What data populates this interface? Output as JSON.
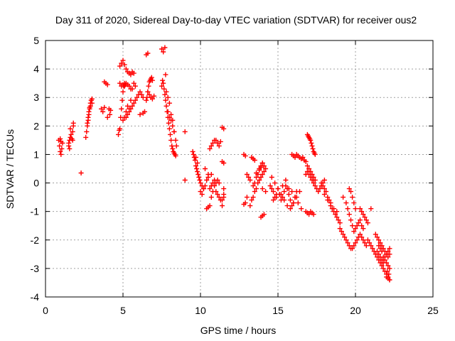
{
  "chart_data": {
    "type": "scatter",
    "title": "Day 311 of 2020, Sidereal Day-to-day VTEC variation (SDTVAR) for receiver ous2",
    "xlabel": "GPS time / hours",
    "ylabel": "SDTVAR / TECUs",
    "xlim": [
      0,
      25
    ],
    "ylim": [
      -4,
      5
    ],
    "xticks": [
      0,
      5,
      10,
      15,
      20,
      25
    ],
    "yticks": [
      -4,
      -3,
      -2,
      -1,
      0,
      1,
      2,
      3,
      4,
      5
    ],
    "xtick_labels": [
      "0",
      "5",
      "10",
      "15",
      "20",
      "25"
    ],
    "ytick_labels": [
      "-4",
      "-3",
      "-2",
      "-1",
      "0",
      "1",
      "2",
      "3",
      "4",
      "5"
    ],
    "grid": true,
    "marker": "+",
    "color": "#ff0000",
    "series": [
      {
        "name": "ous2",
        "x": [
          0.85,
          0.9,
          0.95,
          1.0,
          1.05,
          1.0,
          0.95,
          1.1,
          1.5,
          1.55,
          1.6,
          1.65,
          1.7,
          1.75,
          1.6,
          1.5,
          1.55,
          1.75,
          1.8,
          1.8,
          2.3,
          2.6,
          2.65,
          2.7,
          2.75,
          2.8,
          2.85,
          2.9,
          2.95,
          3.0,
          2.7,
          2.75,
          2.8,
          2.85,
          2.9,
          2.95,
          3.0,
          3.6,
          3.7,
          3.8,
          3.9,
          4.0,
          4.1,
          4.2,
          3.8,
          4.0,
          4.15,
          4.7,
          4.75,
          4.8,
          4.85,
          4.9,
          4.95,
          5.0,
          5.05,
          5.1,
          5.15,
          4.8,
          4.9,
          5.0,
          5.1,
          5.2,
          5.3,
          5.4,
          5.5,
          5.6,
          5.7,
          5.0,
          5.1,
          5.2,
          5.3,
          5.4,
          5.5,
          5.6,
          5.7,
          5.8,
          4.8,
          4.9,
          5.0,
          5.1,
          5.2,
          5.3,
          5.4,
          5.5,
          5.2,
          5.3,
          5.4,
          5.5,
          5.6,
          5.7,
          5.8,
          5.9,
          6.0,
          6.1,
          6.2,
          6.3,
          6.1,
          6.3,
          6.4,
          6.5,
          6.55,
          6.6,
          6.65,
          6.7,
          6.75,
          6.8,
          6.85,
          6.9,
          6.5,
          6.6,
          6.7,
          6.8,
          6.9,
          6.6,
          7.0,
          7.5,
          7.55,
          7.6,
          7.65,
          7.7,
          7.75,
          7.8,
          7.85,
          7.9,
          7.95,
          8.0,
          8.05,
          8.1,
          8.15,
          8.2,
          8.25,
          8.3,
          8.35,
          8.4,
          7.9,
          8.0,
          8.1,
          8.2,
          8.3,
          7.8,
          7.9,
          8.0,
          8.1,
          8.2,
          8.3,
          8.4,
          8.45,
          7.5,
          7.6,
          7.7,
          7.75,
          9.0,
          9.0,
          9.5,
          9.55,
          9.6,
          9.65,
          9.7,
          9.75,
          9.8,
          9.85,
          9.9,
          9.95,
          10.0,
          10.1,
          10.2,
          9.7,
          9.8,
          10.0,
          10.1,
          10.2,
          10.3,
          10.4,
          10.5,
          10.6,
          10.7,
          10.8,
          10.9,
          11.0,
          11.1,
          11.2,
          11.3,
          11.4,
          11.5,
          10.4,
          10.5,
          10.6,
          10.7,
          10.8,
          10.9,
          11.0,
          11.1,
          11.2,
          10.6,
          10.7,
          10.8,
          10.9,
          11.0,
          11.1,
          11.2,
          11.3,
          11.4,
          10.3,
          10.5,
          10.7,
          11.4,
          11.5,
          11.5,
          11.4,
          11.5,
          11.5,
          12.8,
          12.9,
          13.0,
          13.1,
          13.2,
          13.0,
          12.9,
          12.8,
          13.2,
          13.3,
          13.4,
          13.5,
          13.6,
          13.7,
          13.8,
          13.9,
          14.0,
          14.1,
          13.4,
          13.5,
          13.6,
          13.7,
          13.8,
          13.9,
          14.0,
          14.1,
          14.2,
          13.3,
          13.4,
          13.5,
          13.6,
          13.8,
          13.9,
          14.0,
          13.9,
          14.0,
          14.1,
          14.0,
          14.2,
          14.5,
          14.6,
          14.7,
          14.8,
          14.9,
          15.0,
          15.1,
          15.2,
          15.3,
          15.4,
          15.5,
          15.6,
          15.7,
          15.8,
          15.9,
          16.0,
          16.1,
          16.2,
          14.6,
          14.8,
          15.0,
          15.2,
          15.4,
          15.6,
          15.8,
          16.0,
          16.2,
          16.4,
          14.7,
          14.9,
          15.1,
          15.3,
          15.5,
          15.7,
          15.9,
          16.1,
          16.3,
          16.5,
          15.9,
          16.0,
          16.1,
          16.2,
          16.3,
          16.4,
          16.5,
          16.6,
          16.7,
          16.8,
          16.9,
          16.95,
          17.0,
          17.05,
          17.1,
          17.15,
          17.2,
          17.25,
          17.3,
          17.35,
          17.4,
          16.8,
          16.9,
          17.0,
          17.1,
          17.2,
          17.3,
          17.4,
          17.5,
          17.6,
          17.7,
          17.8,
          17.9,
          18.0,
          16.8,
          16.9,
          17.0,
          17.1,
          17.2,
          17.3,
          16.9,
          17.0,
          17.1,
          17.2,
          17.3,
          17.4,
          17.8,
          17.9,
          18.0,
          18.1,
          18.2,
          18.3,
          18.4,
          18.5,
          18.6,
          18.7,
          18.8,
          18.9,
          19.0,
          18.0,
          18.2,
          18.4,
          18.6,
          18.8,
          19.0,
          19.1,
          19.2,
          19.3,
          19.4,
          19.5,
          19.6,
          19.7,
          19.8,
          19.9,
          20.0,
          20.1,
          20.2,
          20.3,
          20.4,
          20.5,
          20.6,
          20.7,
          19.2,
          19.4,
          19.5,
          19.6,
          19.7,
          19.8,
          19.9,
          20.0,
          20.1,
          20.2,
          20.3,
          20.4,
          20.5,
          19.6,
          19.7,
          19.8,
          19.9,
          20.0,
          20.3,
          20.4,
          20.5,
          20.6,
          20.7,
          20.8,
          21.0,
          20.8,
          20.9,
          21.0,
          21.1,
          21.2,
          21.3,
          21.4,
          21.5,
          21.6,
          21.7,
          21.8,
          21.9,
          22.0,
          22.1,
          22.2,
          21.3,
          21.4,
          21.5,
          21.6,
          21.7,
          21.8,
          21.9,
          22.0,
          22.1,
          22.2,
          21.5,
          21.6,
          21.7,
          21.8,
          21.9,
          22.0,
          22.1,
          22.2,
          21.4,
          21.5,
          21.6,
          21.7,
          21.8,
          21.9,
          22.0,
          22.1,
          22.2,
          22.0,
          22.1,
          22.2,
          22.05,
          22.15
        ],
        "y": [
          1.5,
          1.3,
          1.1,
          1.0,
          1.2,
          1.45,
          1.55,
          1.4,
          1.4,
          1.5,
          1.6,
          1.7,
          1.55,
          1.5,
          1.9,
          1.3,
          1.2,
          1.8,
          2.0,
          2.1,
          0.35,
          1.6,
          1.8,
          2.0,
          2.2,
          2.4,
          2.6,
          2.7,
          2.9,
          2.8,
          2.1,
          2.3,
          2.5,
          2.65,
          2.8,
          2.9,
          2.95,
          2.6,
          2.5,
          2.65,
          3.5,
          3.45,
          2.6,
          2.55,
          3.55,
          2.3,
          2.4,
          1.7,
          1.85,
          1.9,
          2.3,
          2.6,
          2.9,
          3.2,
          3.4,
          3.5,
          3.45,
          4.1,
          4.2,
          4.3,
          4.15,
          4.0,
          3.9,
          3.85,
          3.8,
          3.9,
          3.85,
          2.2,
          2.3,
          2.5,
          2.7,
          2.6,
          2.9,
          3.3,
          3.5,
          3.4,
          3.5,
          3.4,
          3.45,
          3.4,
          3.5,
          3.45,
          3.4,
          3.3,
          2.3,
          2.4,
          2.5,
          2.6,
          2.7,
          2.8,
          2.9,
          3.0,
          3.1,
          3.2,
          3.1,
          3.0,
          2.4,
          2.45,
          2.5,
          2.9,
          3.0,
          3.2,
          3.4,
          3.55,
          3.6,
          3.65,
          3.7,
          3.6,
          4.5,
          4.55,
          3.1,
          3.0,
          2.95,
          3.2,
          3.05,
          3.4,
          3.6,
          3.5,
          3.3,
          3.1,
          2.9,
          2.7,
          2.5,
          2.3,
          2.1,
          1.9,
          1.7,
          1.5,
          1.3,
          1.2,
          1.1,
          1.05,
          1.0,
          0.95,
          2.5,
          2.3,
          2.2,
          2.0,
          1.8,
          3.2,
          3.0,
          2.8,
          2.4,
          2.2,
          1.8,
          1.5,
          1.3,
          4.7,
          4.6,
          4.75,
          3.8,
          1.8,
          0.1,
          1.1,
          1.0,
          0.9,
          0.8,
          0.6,
          0.5,
          0.4,
          0.3,
          0.2,
          0.1,
          0.0,
          -0.1,
          -0.2,
          0.9,
          0.7,
          -0.3,
          -0.4,
          -0.2,
          -0.1,
          0.1,
          0.3,
          1.2,
          1.3,
          1.4,
          1.5,
          1.5,
          1.4,
          1.3,
          1.45,
          1.95,
          1.9,
          -0.9,
          -0.85,
          -0.8,
          -0.5,
          -0.3,
          -0.1,
          0.0,
          0.1,
          0.0,
          -0.2,
          -0.1,
          0.0,
          0.1,
          -0.3,
          -0.4,
          -0.5,
          -0.6,
          -0.8,
          0.5,
          0.2,
          0.3,
          0.75,
          0.7,
          -0.5,
          -0.6,
          -0.4,
          -0.2,
          1.0,
          0.95,
          0.3,
          0.2,
          0.1,
          -0.5,
          -0.7,
          -0.75,
          -0.8,
          -0.6,
          -0.5,
          -0.3,
          -0.2,
          0.0,
          0.1,
          0.2,
          0.3,
          0.4,
          -0.1,
          0.0,
          0.2,
          0.3,
          0.5,
          0.6,
          0.7,
          0.6,
          0.5,
          0.9,
          0.85,
          0.8,
          0.35,
          0.45,
          0.55,
          0.7,
          -1.2,
          -1.15,
          -1.1,
          -0.2,
          -0.3,
          -0.1,
          -0.2,
          -0.3,
          -0.5,
          -0.4,
          -0.2,
          -0.4,
          -0.6,
          -0.5,
          -0.3,
          -0.1,
          -0.2,
          -0.4,
          -0.6,
          -0.8,
          -0.7,
          -0.5,
          -0.3,
          0.2,
          0.0,
          -0.2,
          -0.4,
          -0.6,
          -0.8,
          -0.9,
          -0.7,
          -0.5,
          -0.3,
          -0.6,
          -0.5,
          -0.4,
          -0.1,
          0.1,
          -0.2,
          -0.3,
          -0.5,
          -0.7,
          -0.9,
          1.0,
          0.95,
          0.9,
          1.0,
          0.95,
          0.9,
          0.85,
          0.9,
          0.8,
          0.75,
          1.7,
          1.65,
          1.6,
          1.55,
          1.5,
          1.4,
          1.3,
          1.2,
          1.1,
          1.05,
          1.0,
          0.3,
          0.4,
          0.3,
          0.2,
          0.1,
          0.0,
          -0.1,
          -0.2,
          -0.3,
          -0.2,
          -0.1,
          0.0,
          0.1,
          -1.0,
          -1.05,
          -1.1,
          -1.0,
          -1.05,
          -1.1,
          0.6,
          0.5,
          0.4,
          0.3,
          0.2,
          0.1,
          0.0,
          -0.1,
          -0.2,
          -0.3,
          -0.5,
          -0.6,
          -0.8,
          -0.9,
          -1.0,
          -1.1,
          -1.2,
          -1.3,
          -1.4,
          -0.4,
          -0.6,
          -0.7,
          -0.9,
          -1.0,
          -1.6,
          -1.7,
          -1.8,
          -1.9,
          -2.0,
          -2.1,
          -2.2,
          -2.3,
          -2.3,
          -2.2,
          -2.1,
          -2.0,
          -1.9,
          -1.8,
          -1.9,
          -2.0,
          -2.1,
          -2.2,
          -0.5,
          -0.7,
          -0.9,
          -1.1,
          -1.3,
          -1.5,
          -1.7,
          -1.6,
          -1.5,
          -1.4,
          -1.3,
          -1.5,
          -1.6,
          -0.2,
          -0.3,
          -0.5,
          -0.7,
          -0.9,
          -0.9,
          -1.0,
          -1.1,
          -1.2,
          -1.3,
          -1.4,
          -0.9,
          -2.0,
          -2.1,
          -2.2,
          -2.3,
          -2.4,
          -2.5,
          -2.6,
          -2.7,
          -2.8,
          -2.9,
          -3.0,
          -3.1,
          -3.2,
          -3.3,
          -3.4,
          -1.8,
          -1.9,
          -2.0,
          -2.1,
          -2.2,
          -2.3,
          -2.4,
          -2.5,
          -2.6,
          -2.5,
          -2.2,
          -2.3,
          -2.4,
          -2.6,
          -2.7,
          -2.8,
          -2.9,
          -3.0,
          -2.4,
          -2.5,
          -2.6,
          -2.7,
          -2.8,
          -2.6,
          -2.5,
          -2.4,
          -2.3,
          -3.3,
          -3.35,
          -3.4,
          -3.1,
          -3.2
        ]
      }
    ]
  }
}
